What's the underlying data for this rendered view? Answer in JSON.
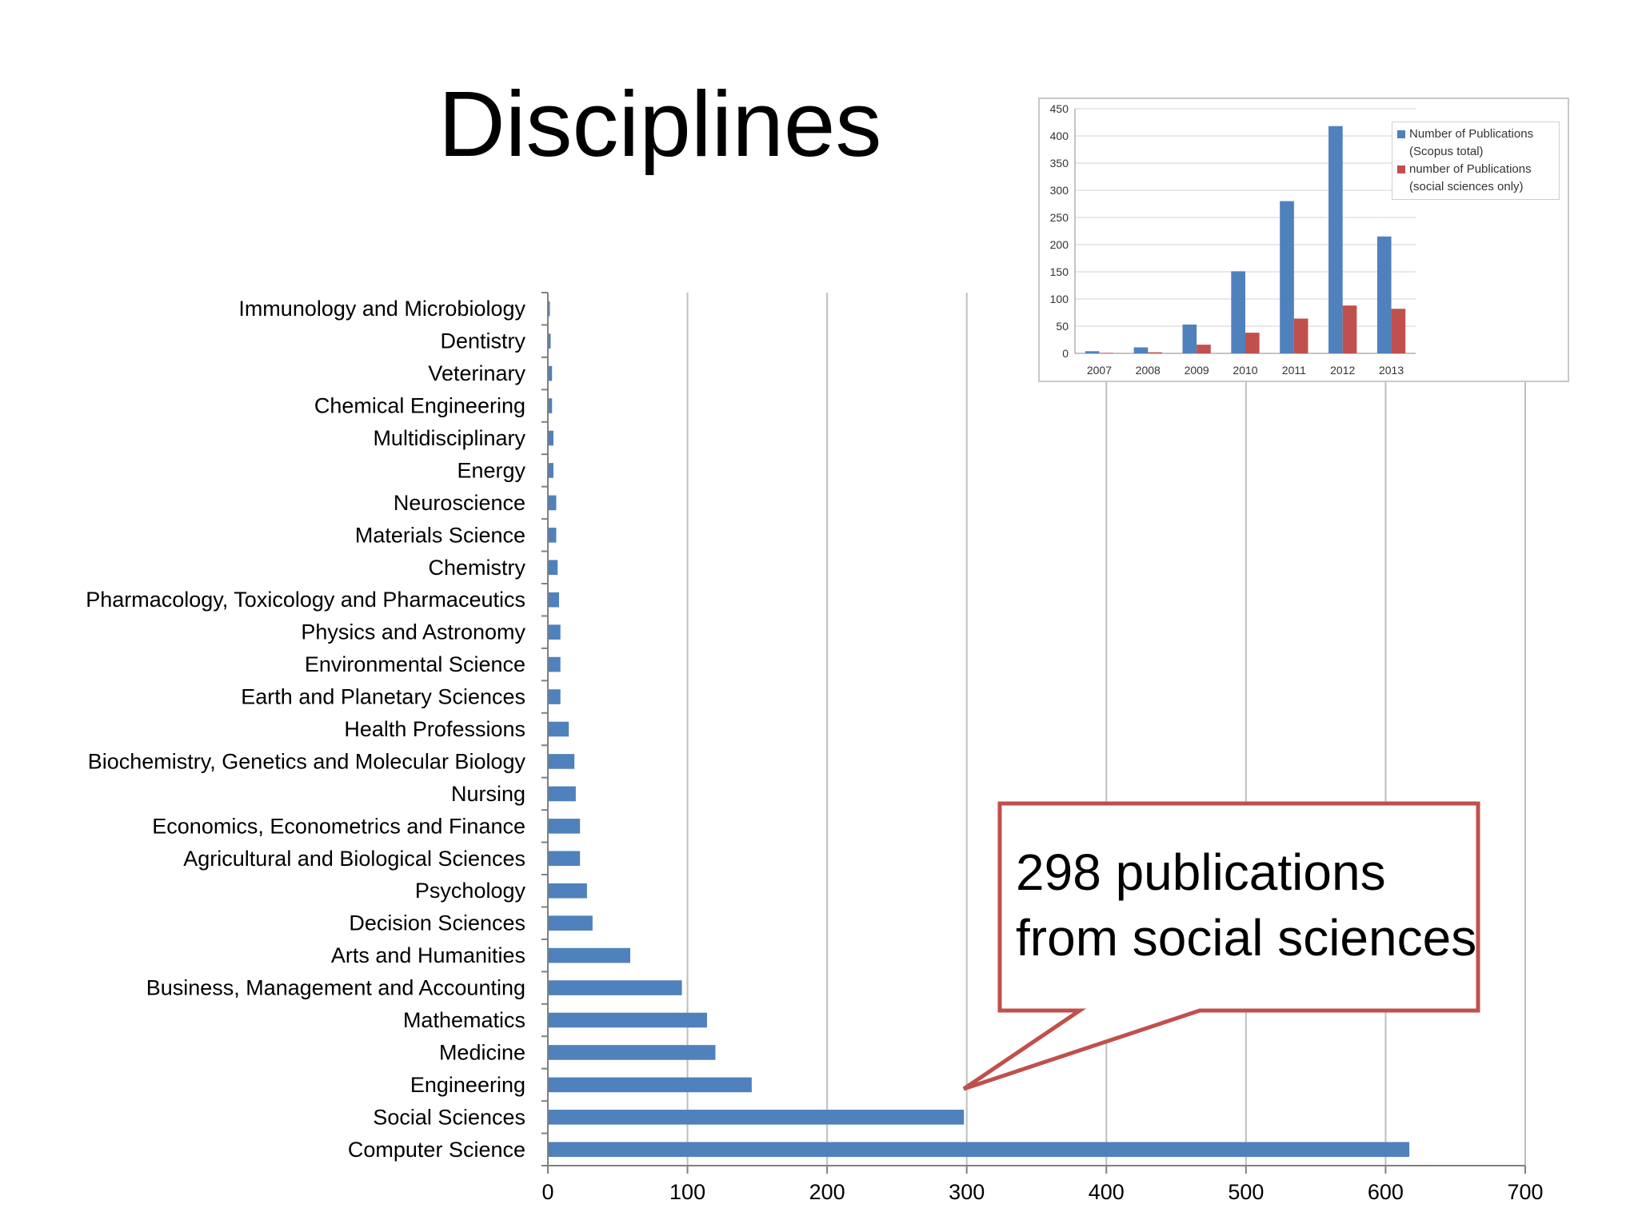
{
  "slide": {
    "title": "Disciplines"
  },
  "callout": {
    "line1": "298 publications",
    "line2": "from social sciences"
  },
  "colors": {
    "blue": "#4f81bd",
    "red": "#c0504d",
    "grid": "#bfbfbf",
    "callout_border": "#c0504d"
  },
  "chart_data": [
    {
      "type": "bar",
      "orientation": "horizontal",
      "title": "",
      "xlabel": "",
      "ylabel": "",
      "xlim": [
        0,
        700
      ],
      "x_ticks": [
        0,
        100,
        200,
        300,
        400,
        500,
        600,
        700
      ],
      "grid": true,
      "categories": [
        "Immunology and Microbiology",
        "Dentistry",
        "Veterinary",
        "Chemical Engineering",
        "Multidisciplinary",
        "Energy",
        "Neuroscience",
        "Materials Science",
        "Chemistry",
        "Pharmacology, Toxicology and Pharmaceutics",
        "Physics and Astronomy",
        "Environmental Science",
        "Earth and Planetary Sciences",
        "Health Professions",
        "Biochemistry, Genetics and Molecular Biology",
        "Nursing",
        "Economics, Econometrics and Finance",
        "Agricultural and Biological Sciences",
        "Psychology",
        "Decision Sciences",
        "Arts and Humanities",
        "Business, Management and Accounting",
        "Mathematics",
        "Medicine",
        "Engineering",
        "Social Sciences",
        "Computer Science"
      ],
      "values": [
        1,
        2,
        3,
        3,
        4,
        4,
        6,
        6,
        7,
        8,
        9,
        9,
        9,
        15,
        19,
        20,
        23,
        23,
        28,
        32,
        59,
        96,
        114,
        120,
        146,
        298,
        617
      ]
    },
    {
      "type": "bar",
      "title": "",
      "xlabel": "",
      "ylabel": "",
      "ylim": [
        0,
        450
      ],
      "y_ticks": [
        0,
        50,
        100,
        150,
        200,
        250,
        300,
        350,
        400,
        450
      ],
      "grid": true,
      "legend_position": "top-right",
      "categories": [
        "2007",
        "2008",
        "2009",
        "2010",
        "2011",
        "2012",
        "2013"
      ],
      "series": [
        {
          "name": "Number of Publications (Scopus total)",
          "name_lines": [
            "Number of Publications",
            "(Scopus total)"
          ],
          "values": [
            4,
            11,
            53,
            151,
            280,
            418,
            215
          ]
        },
        {
          "name": "number of Publications (social sciences only)",
          "name_lines": [
            "number of Publications",
            "(social sciences only)"
          ],
          "values": [
            1,
            2,
            16,
            38,
            64,
            88,
            82
          ]
        }
      ]
    }
  ]
}
